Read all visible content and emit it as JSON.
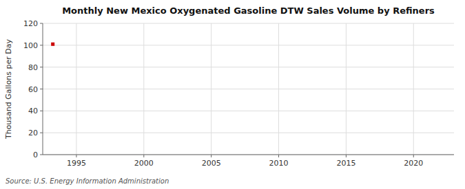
{
  "chart_data": {
    "type": "scatter",
    "title": "Monthly New Mexico Oxygenated Gasoline DTW Sales Volume by Refiners",
    "ylabel": "Thousand Gallons per Day",
    "annotation": "Source: U.S. Energy Information Administration",
    "x": [
      1993.25
    ],
    "values": [
      101.0
    ],
    "color": "#cc0000",
    "marker": "square",
    "xlim": [
      1992.5,
      2023
    ],
    "ylim": [
      0,
      120
    ],
    "xticks": [
      1995,
      2000,
      2005,
      2010,
      2015,
      2020
    ],
    "yticks": [
      0,
      20,
      40,
      60,
      80,
      100,
      120
    ],
    "grid": true
  }
}
